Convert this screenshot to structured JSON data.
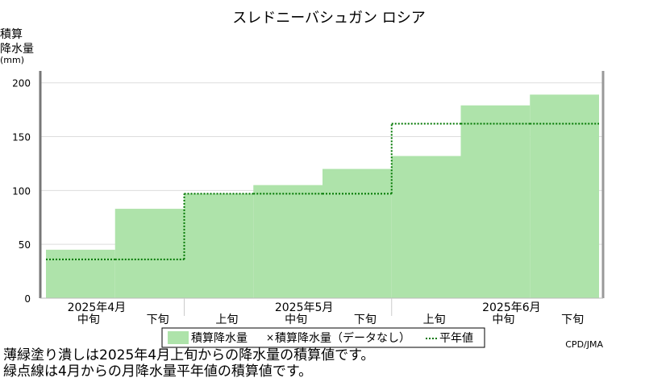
{
  "chart_data": {
    "type": "step-area",
    "title": "スレドニーバシュガン ロシア",
    "y_label": [
      "積算",
      "降水量",
      "(mm)"
    ],
    "categories": [
      "中旬",
      "下旬",
      "上旬",
      "中旬",
      "下旬",
      "上旬",
      "中旬",
      "下旬"
    ],
    "months": [
      "2025年4月",
      "2025年5月",
      "2025年6月"
    ],
    "series": [
      {
        "name": "積算降水量",
        "color": "#aee3aa",
        "values": [
          45,
          83,
          97,
          105,
          120,
          132,
          179,
          189
        ]
      },
      {
        "name": "平年値",
        "color": "#007700",
        "values": [
          36,
          36,
          97,
          97,
          97,
          162,
          162,
          162
        ]
      }
    ],
    "no_data_label": "積算降水量（データなし）",
    "ylim": [
      0,
      211
    ],
    "yticks": [
      0,
      50,
      100,
      150,
      200
    ],
    "grid": true,
    "source": "CPD/JMA",
    "notes": [
      "薄緑塗り潰しは2025年4月上旬からの降水量の積算値です。",
      "緑点線は4月からの月降水量平年値の積算値です。"
    ]
  }
}
